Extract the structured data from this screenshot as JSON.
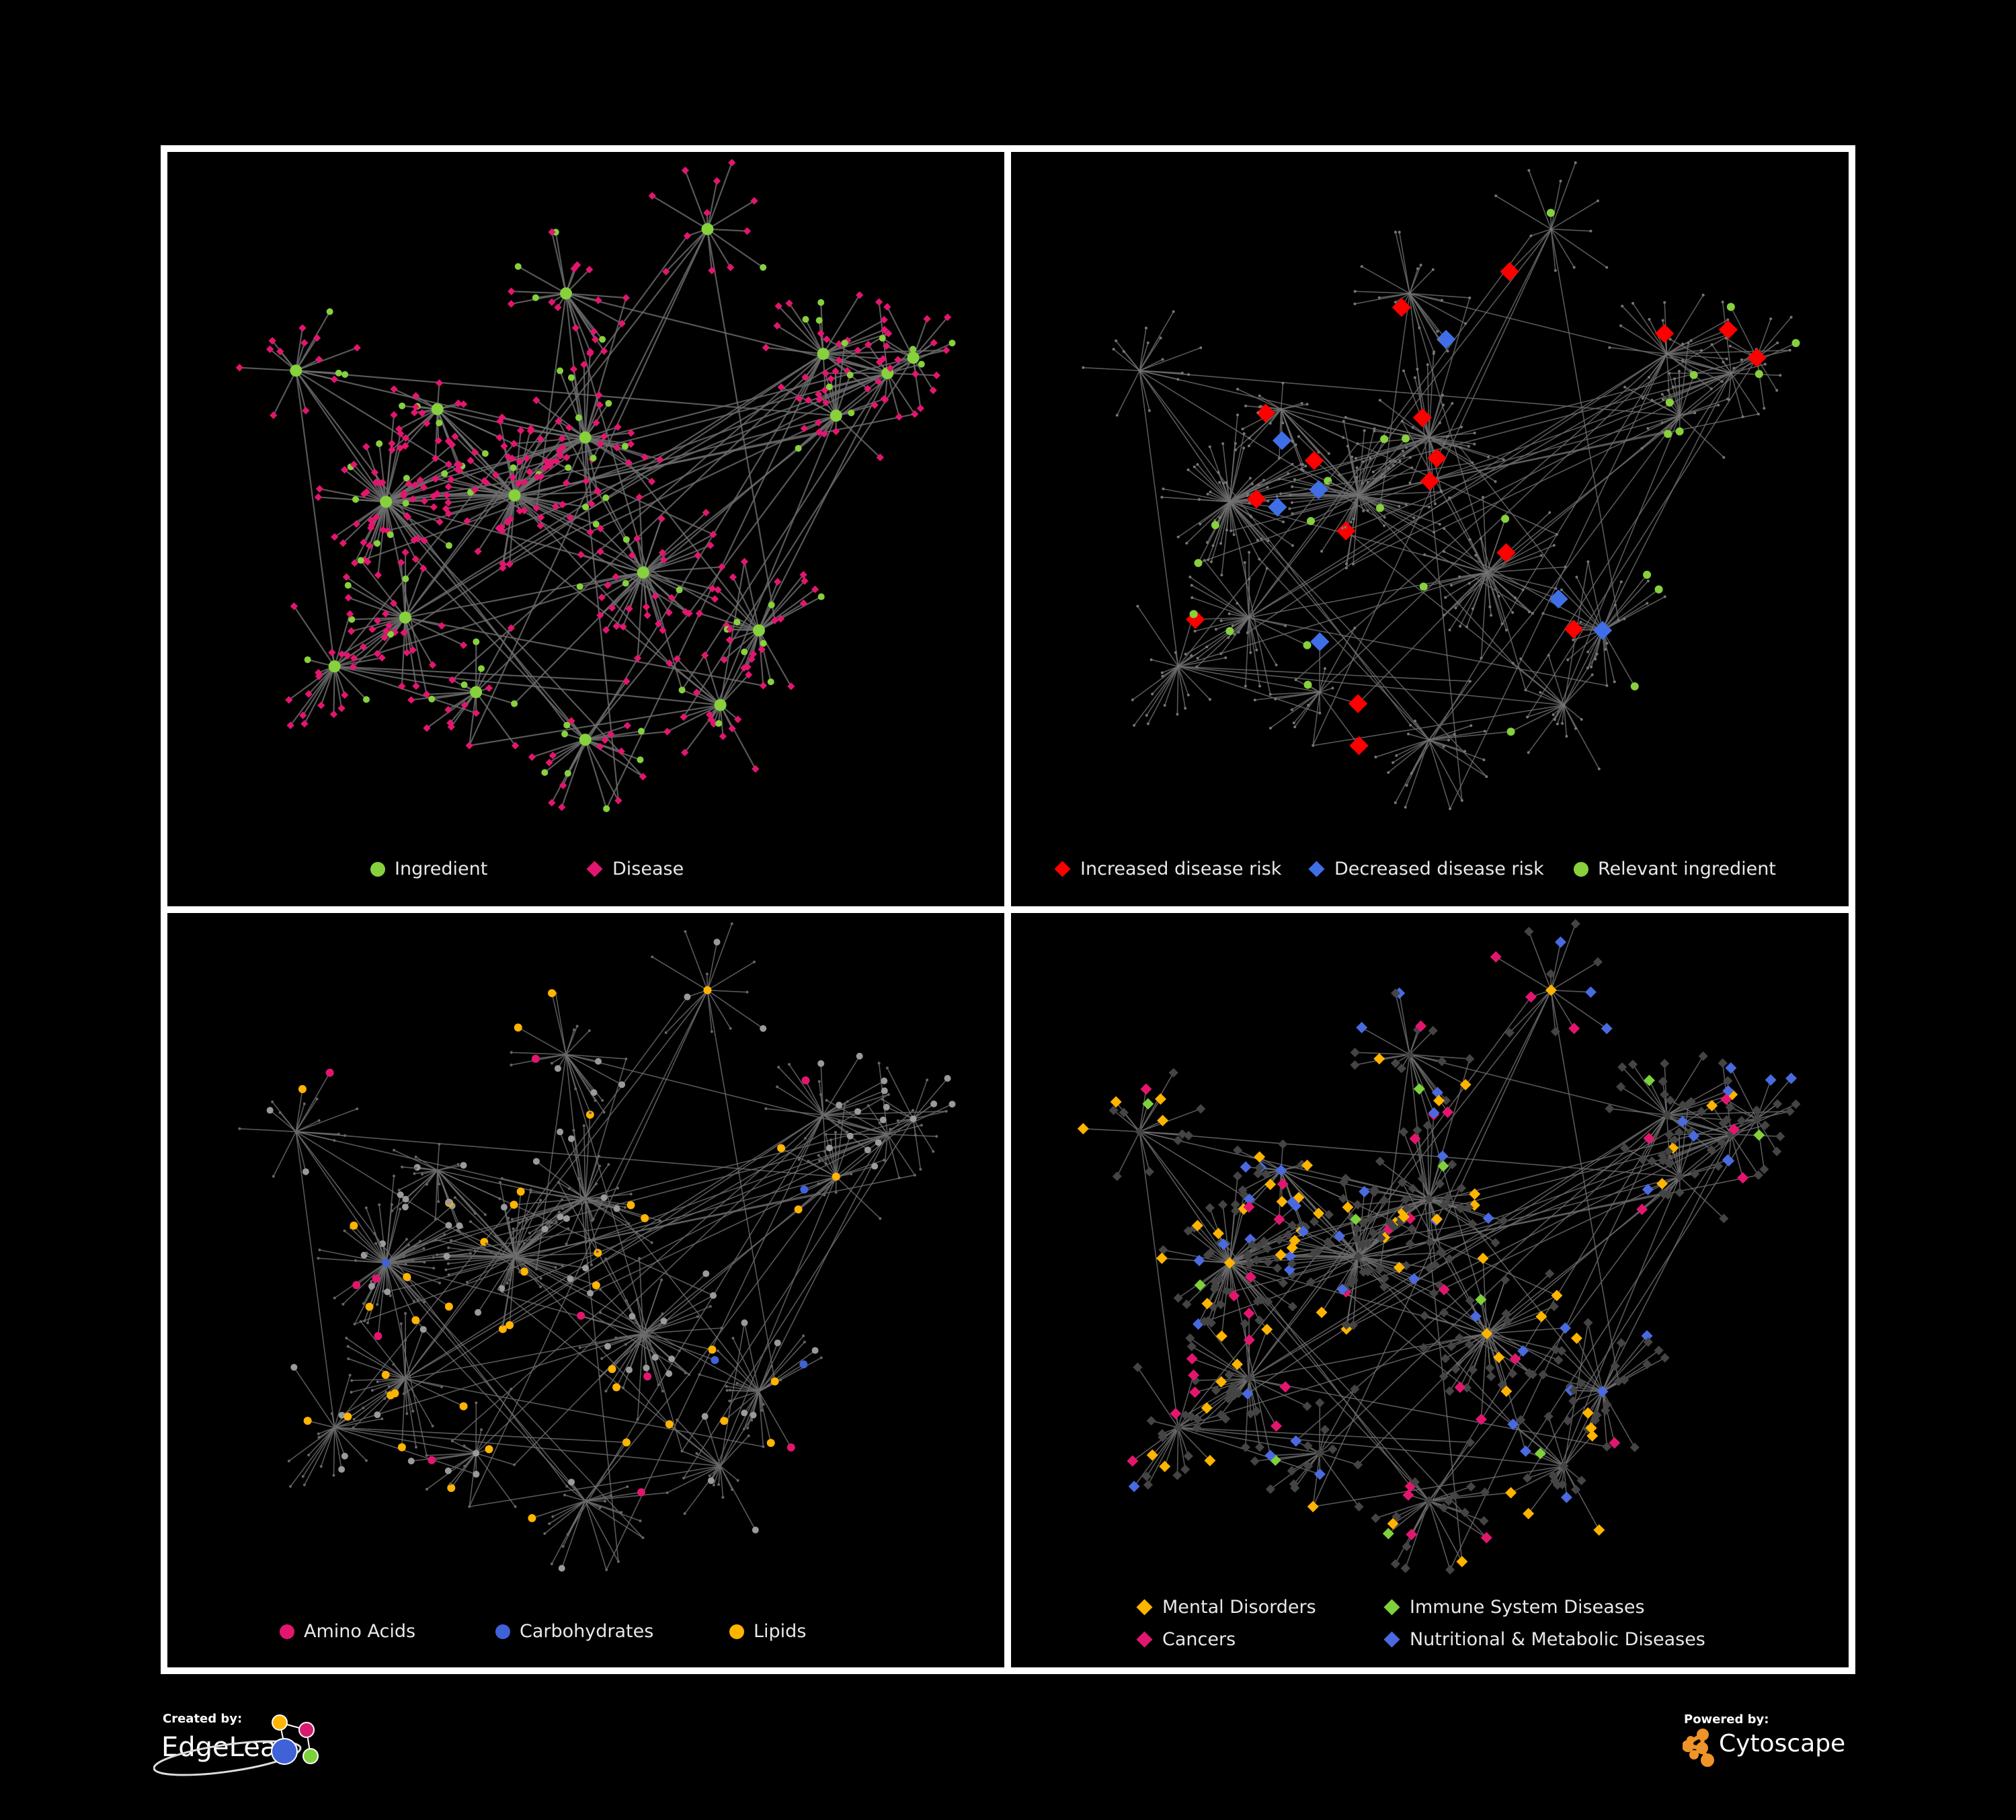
{
  "panels": [
    {
      "legend": [
        {
          "label": "Ingredient",
          "color": "#86d13c",
          "shape": "circle"
        },
        {
          "label": "Disease",
          "color": "#e3166f",
          "shape": "diamond"
        }
      ]
    },
    {
      "legend": [
        {
          "label": "Increased disease risk",
          "color": "#ff0000",
          "shape": "diamond"
        },
        {
          "label": "Decreased disease risk",
          "color": "#3f6fe6",
          "shape": "diamond"
        },
        {
          "label": "Relevant ingredient",
          "color": "#86d13c",
          "shape": "circle"
        }
      ]
    },
    {
      "legend": [
        {
          "label": "Amino Acids",
          "color": "#e3166f",
          "shape": "circle"
        },
        {
          "label": "Carbohydrates",
          "color": "#3f62d8",
          "shape": "circle"
        },
        {
          "label": "Lipids",
          "color": "#ffb400",
          "shape": "circle"
        }
      ]
    },
    {
      "legend": [
        {
          "label": "Mental Disorders",
          "color": "#ffb400",
          "shape": "diamond"
        },
        {
          "label": "Immune System Diseases",
          "color": "#7fd13b",
          "shape": "diamond"
        },
        {
          "label": "Cancers",
          "color": "#e3166f",
          "shape": "diamond"
        },
        {
          "label": "Nutritional & Metabolic Diseases",
          "color": "#4a6ae0",
          "shape": "diamond"
        }
      ]
    }
  ],
  "footer": {
    "created_by": "Created by:",
    "created_brand": "EdgeLeap",
    "powered_by": "Powered by:",
    "powered_brand": "Cytoscape"
  },
  "colors": {
    "edge": "#6e6e6e",
    "gray_node": "#9a9a9a",
    "background": "#000000",
    "frame": "#ffffff"
  }
}
